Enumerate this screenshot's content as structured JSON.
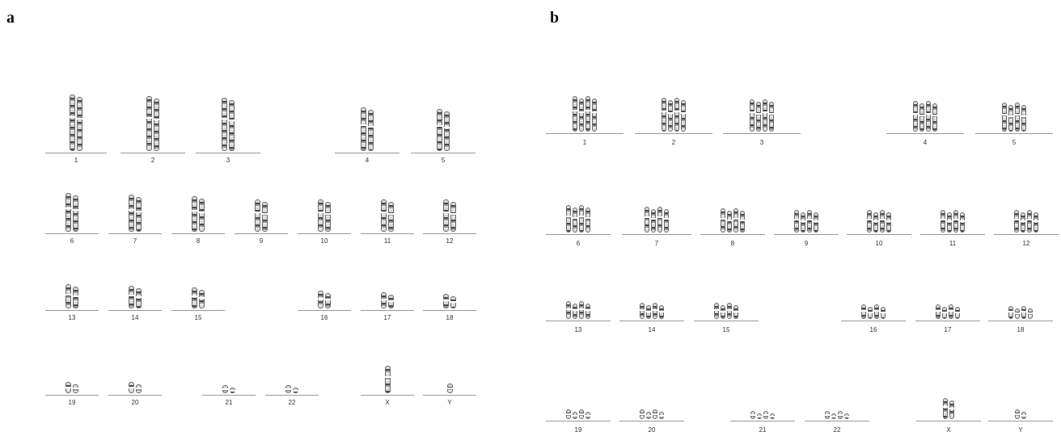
{
  "panels": [
    {
      "label": "a",
      "chromosomes": [
        {
          "label": "1",
          "copies": 2
        },
        {
          "label": "2",
          "copies": 2
        },
        {
          "label": "3",
          "copies": 2
        },
        {
          "label": "4",
          "copies": 2
        },
        {
          "label": "5",
          "copies": 2
        },
        {
          "label": "6",
          "copies": 2
        },
        {
          "label": "7",
          "copies": 2
        },
        {
          "label": "8",
          "copies": 2
        },
        {
          "label": "9",
          "copies": 2
        },
        {
          "label": "10",
          "copies": 2
        },
        {
          "label": "11",
          "copies": 2
        },
        {
          "label": "12",
          "copies": 2
        },
        {
          "label": "13",
          "copies": 2
        },
        {
          "label": "14",
          "copies": 2
        },
        {
          "label": "15",
          "copies": 2
        },
        {
          "label": "16",
          "copies": 2
        },
        {
          "label": "17",
          "copies": 2
        },
        {
          "label": "18",
          "copies": 2
        },
        {
          "label": "19",
          "copies": 2
        },
        {
          "label": "20",
          "copies": 2
        },
        {
          "label": "21",
          "copies": 2
        },
        {
          "label": "22",
          "copies": 2
        },
        {
          "label": "X",
          "copies": 1
        },
        {
          "label": "Y",
          "copies": 1
        }
      ]
    },
    {
      "label": "b",
      "chromosomes": [
        {
          "label": "1",
          "copies": 4
        },
        {
          "label": "2",
          "copies": 4
        },
        {
          "label": "3",
          "copies": 4
        },
        {
          "label": "4",
          "copies": 4
        },
        {
          "label": "5",
          "copies": 4
        },
        {
          "label": "6",
          "copies": 4
        },
        {
          "label": "7",
          "copies": 4
        },
        {
          "label": "8",
          "copies": 4
        },
        {
          "label": "9",
          "copies": 4
        },
        {
          "label": "10",
          "copies": 4
        },
        {
          "label": "11",
          "copies": 4
        },
        {
          "label": "12",
          "copies": 4
        },
        {
          "label": "13",
          "copies": 4
        },
        {
          "label": "14",
          "copies": 4
        },
        {
          "label": "15",
          "copies": 4
        },
        {
          "label": "16",
          "copies": 4
        },
        {
          "label": "17",
          "copies": 4
        },
        {
          "label": "18",
          "copies": 4
        },
        {
          "label": "19",
          "copies": 4
        },
        {
          "label": "20",
          "copies": 4
        },
        {
          "label": "21",
          "copies": 4
        },
        {
          "label": "22",
          "copies": 4
        },
        {
          "label": "X",
          "copies": 2
        },
        {
          "label": "Y",
          "copies": 2
        }
      ]
    }
  ]
}
